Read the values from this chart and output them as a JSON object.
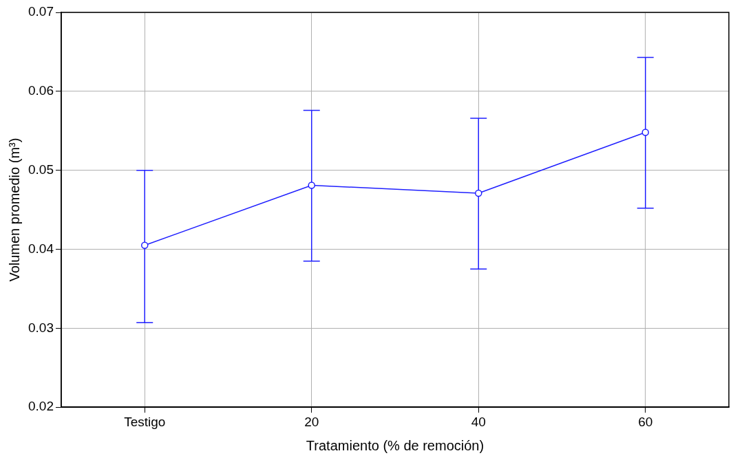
{
  "chart_data": {
    "type": "line",
    "xlabel": "Tratamiento (% de remoción)",
    "ylabel": "Volumen promedio (m³)",
    "categories": [
      "Testigo",
      "20",
      "40",
      "60"
    ],
    "series": [
      {
        "color": "#1f1fff",
        "values": [
          0.0405,
          0.0481,
          0.0471,
          0.0548
        ],
        "errors": [
          [
            0.0307,
            0.05
          ],
          [
            0.0385,
            0.0576
          ],
          [
            0.0375,
            0.0566
          ],
          [
            0.0452,
            0.0643
          ]
        ]
      }
    ],
    "ylim": [
      0.02,
      0.07
    ],
    "yticks": [
      0.02,
      0.03,
      0.04,
      0.05,
      0.06,
      0.07
    ],
    "grid": true,
    "marker": "circle",
    "line_style": "solid"
  }
}
